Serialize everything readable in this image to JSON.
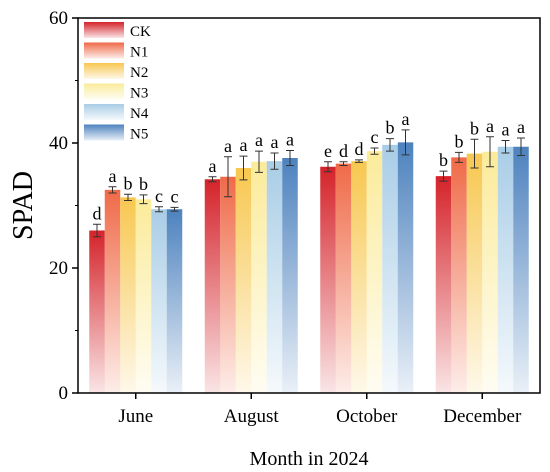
{
  "chart_data": {
    "type": "bar",
    "title": "",
    "xlabel": "Month in 2024",
    "ylabel": "SPAD",
    "ylim": [
      0,
      60
    ],
    "yticks": [
      0,
      20,
      40,
      60
    ],
    "grid": false,
    "legend_position": "top-left",
    "categories": [
      "June",
      "August",
      "October",
      "December"
    ],
    "series": [
      {
        "name": "CK",
        "color": "#d4232a",
        "values": [
          26.0,
          34.2,
          36.2,
          34.7
        ],
        "errors": [
          1.0,
          0.4,
          0.8,
          0.8
        ],
        "labels": [
          "d",
          "a",
          "e",
          "b"
        ]
      },
      {
        "name": "N1",
        "color": "#ef6a48",
        "values": [
          32.5,
          34.6,
          36.7,
          37.7
        ],
        "errors": [
          0.5,
          3.2,
          0.3,
          0.8
        ],
        "labels": [
          "a",
          "a",
          "d",
          "b"
        ]
      },
      {
        "name": "N2",
        "color": "#f7c74f",
        "values": [
          31.3,
          36.0,
          37.1,
          38.3
        ],
        "errors": [
          0.5,
          1.9,
          0.2,
          2.3
        ],
        "labels": [
          "b",
          "a",
          "d",
          "b"
        ]
      },
      {
        "name": "N3",
        "color": "#fbeb9a",
        "values": [
          31.0,
          37.0,
          38.7,
          38.6
        ],
        "errors": [
          0.7,
          1.7,
          0.5,
          2.4
        ],
        "labels": [
          "b",
          "a",
          "c",
          "a"
        ]
      },
      {
        "name": "N4",
        "color": "#a9cde6",
        "values": [
          29.4,
          37.1,
          39.7,
          39.4
        ],
        "errors": [
          0.4,
          1.3,
          1.0,
          1.0
        ],
        "labels": [
          "c",
          "a",
          "b",
          "a"
        ]
      },
      {
        "name": "N5",
        "color": "#4d82be",
        "values": [
          29.4,
          37.6,
          40.1,
          39.4
        ],
        "errors": [
          0.3,
          1.2,
          2.0,
          1.4
        ],
        "labels": [
          "c",
          "a",
          "a",
          "a"
        ]
      }
    ]
  }
}
